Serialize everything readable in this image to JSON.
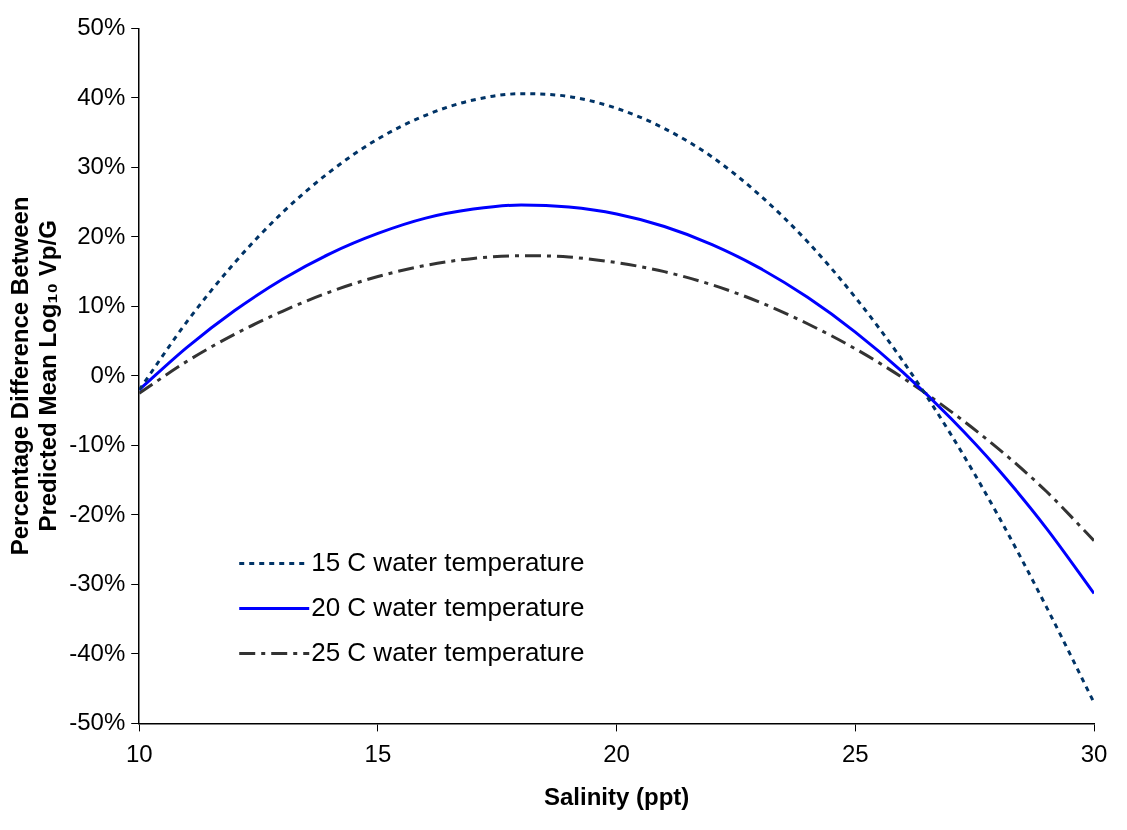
{
  "chart_data": {
    "type": "line",
    "xlabel": "Salinity (ppt)",
    "ylabel": "Percentage Difference Between\nPredicted Mean Log₁₀ Vp/G",
    "x": [
      10,
      11,
      12,
      13,
      14,
      15,
      16,
      17,
      18,
      19,
      20,
      21,
      22,
      23,
      24,
      25,
      26,
      27,
      28,
      29,
      30
    ],
    "series": [
      {
        "name": "15 C water temperature",
        "color": "#003366",
        "line_style": "dotted",
        "values": [
          -2,
          7.8,
          16.3,
          23.5,
          29.4,
          34.1,
          37.5,
          39.7,
          40.6,
          40.2,
          38.5,
          35.6,
          31.5,
          26,
          19.3,
          11.3,
          2.1,
          -8.4,
          -20.2,
          -33.2,
          -47
        ]
      },
      {
        "name": "20 C water temperature",
        "color": "#0000ff",
        "line_style": "solid",
        "values": [
          -2,
          4.1,
          9.4,
          13.9,
          17.6,
          20.5,
          22.7,
          24,
          24.6,
          24.3,
          23.3,
          21.5,
          18.9,
          15.5,
          11.3,
          6.3,
          0.5,
          -6.1,
          -13.5,
          -21.9,
          -31.3
        ]
      },
      {
        "name": "25 C water temperature",
        "color": "#333333",
        "line_style": "dashed",
        "values": [
          -2.5,
          2.1,
          6,
          9.3,
          12.1,
          14.3,
          15.9,
          16.9,
          17.3,
          17.1,
          16.3,
          15,
          13.1,
          10.6,
          7.5,
          3.9,
          -0.3,
          -5.1,
          -10.5,
          -16.6,
          -23.7
        ]
      }
    ],
    "xlim": [
      10,
      30
    ],
    "xticks": [
      10,
      15,
      20,
      25,
      30
    ],
    "ylim": [
      -50,
      50
    ],
    "yticks": [
      {
        "value": -50,
        "label": "-50%"
      },
      {
        "value": -40,
        "label": "-40%"
      },
      {
        "value": -30,
        "label": "-30%"
      },
      {
        "value": -20,
        "label": "-20%"
      },
      {
        "value": -10,
        "label": "-10%"
      },
      {
        "value": 0,
        "label": "0%"
      },
      {
        "value": 10,
        "label": "10%"
      },
      {
        "value": 20,
        "label": "20%"
      },
      {
        "value": 30,
        "label": "30%"
      },
      {
        "value": 40,
        "label": "40%"
      },
      {
        "value": 50,
        "label": "50%"
      }
    ],
    "grid": false,
    "legend": "bottom left",
    "marker": "none"
  }
}
